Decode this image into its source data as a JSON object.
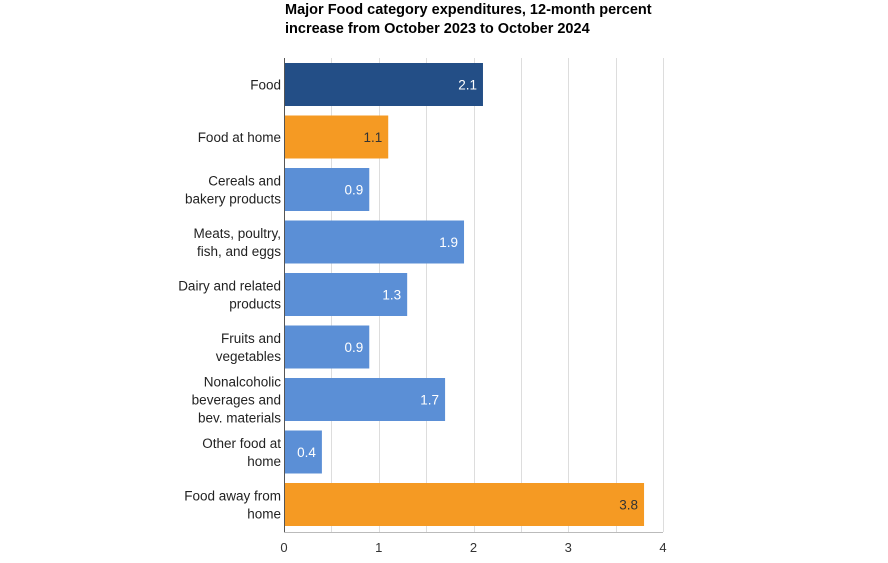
{
  "chart_data": {
    "type": "bar",
    "orientation": "horizontal",
    "title_lines": [
      "Major Food category expenditures, 12-month percent",
      "increase from October 2023 to October 2024"
    ],
    "categories": [
      [
        "Food"
      ],
      [
        "Food at home"
      ],
      [
        "Cereals and",
        "bakery products"
      ],
      [
        "Meats, poultry,",
        "fish, and eggs"
      ],
      [
        "Dairy and related",
        "products"
      ],
      [
        "Fruits and",
        "vegetables"
      ],
      [
        "Nonalcoholic",
        "beverages and",
        "bev. materials"
      ],
      [
        "Other food at",
        "home"
      ],
      [
        "Food away from",
        "home"
      ]
    ],
    "values": [
      2.1,
      1.1,
      0.9,
      1.9,
      1.3,
      0.9,
      1.7,
      0.4,
      3.8
    ],
    "value_labels": [
      "2.1",
      "1.1",
      "0.9",
      "1.9",
      "1.3",
      "0.9",
      "1.7",
      "0.4",
      "3.8"
    ],
    "bar_colors": [
      "#234e86",
      "#f59a23",
      "#5b8fd6",
      "#5b8fd6",
      "#5b8fd6",
      "#5b8fd6",
      "#5b8fd6",
      "#5b8fd6",
      "#f59a23"
    ],
    "label_colors": [
      "#ffffff",
      "#333333",
      "#ffffff",
      "#ffffff",
      "#ffffff",
      "#ffffff",
      "#ffffff",
      "#ffffff",
      "#333333"
    ],
    "xlim": [
      0,
      4
    ],
    "xticks": [
      0,
      1,
      2,
      3,
      4
    ],
    "xtick_labels": [
      "0",
      "1",
      "2",
      "3",
      "4"
    ],
    "grid": "vertical lines at 0.5 intervals",
    "gridline_color": "#dddddd",
    "axis_color": "#555555",
    "legend": "none"
  }
}
